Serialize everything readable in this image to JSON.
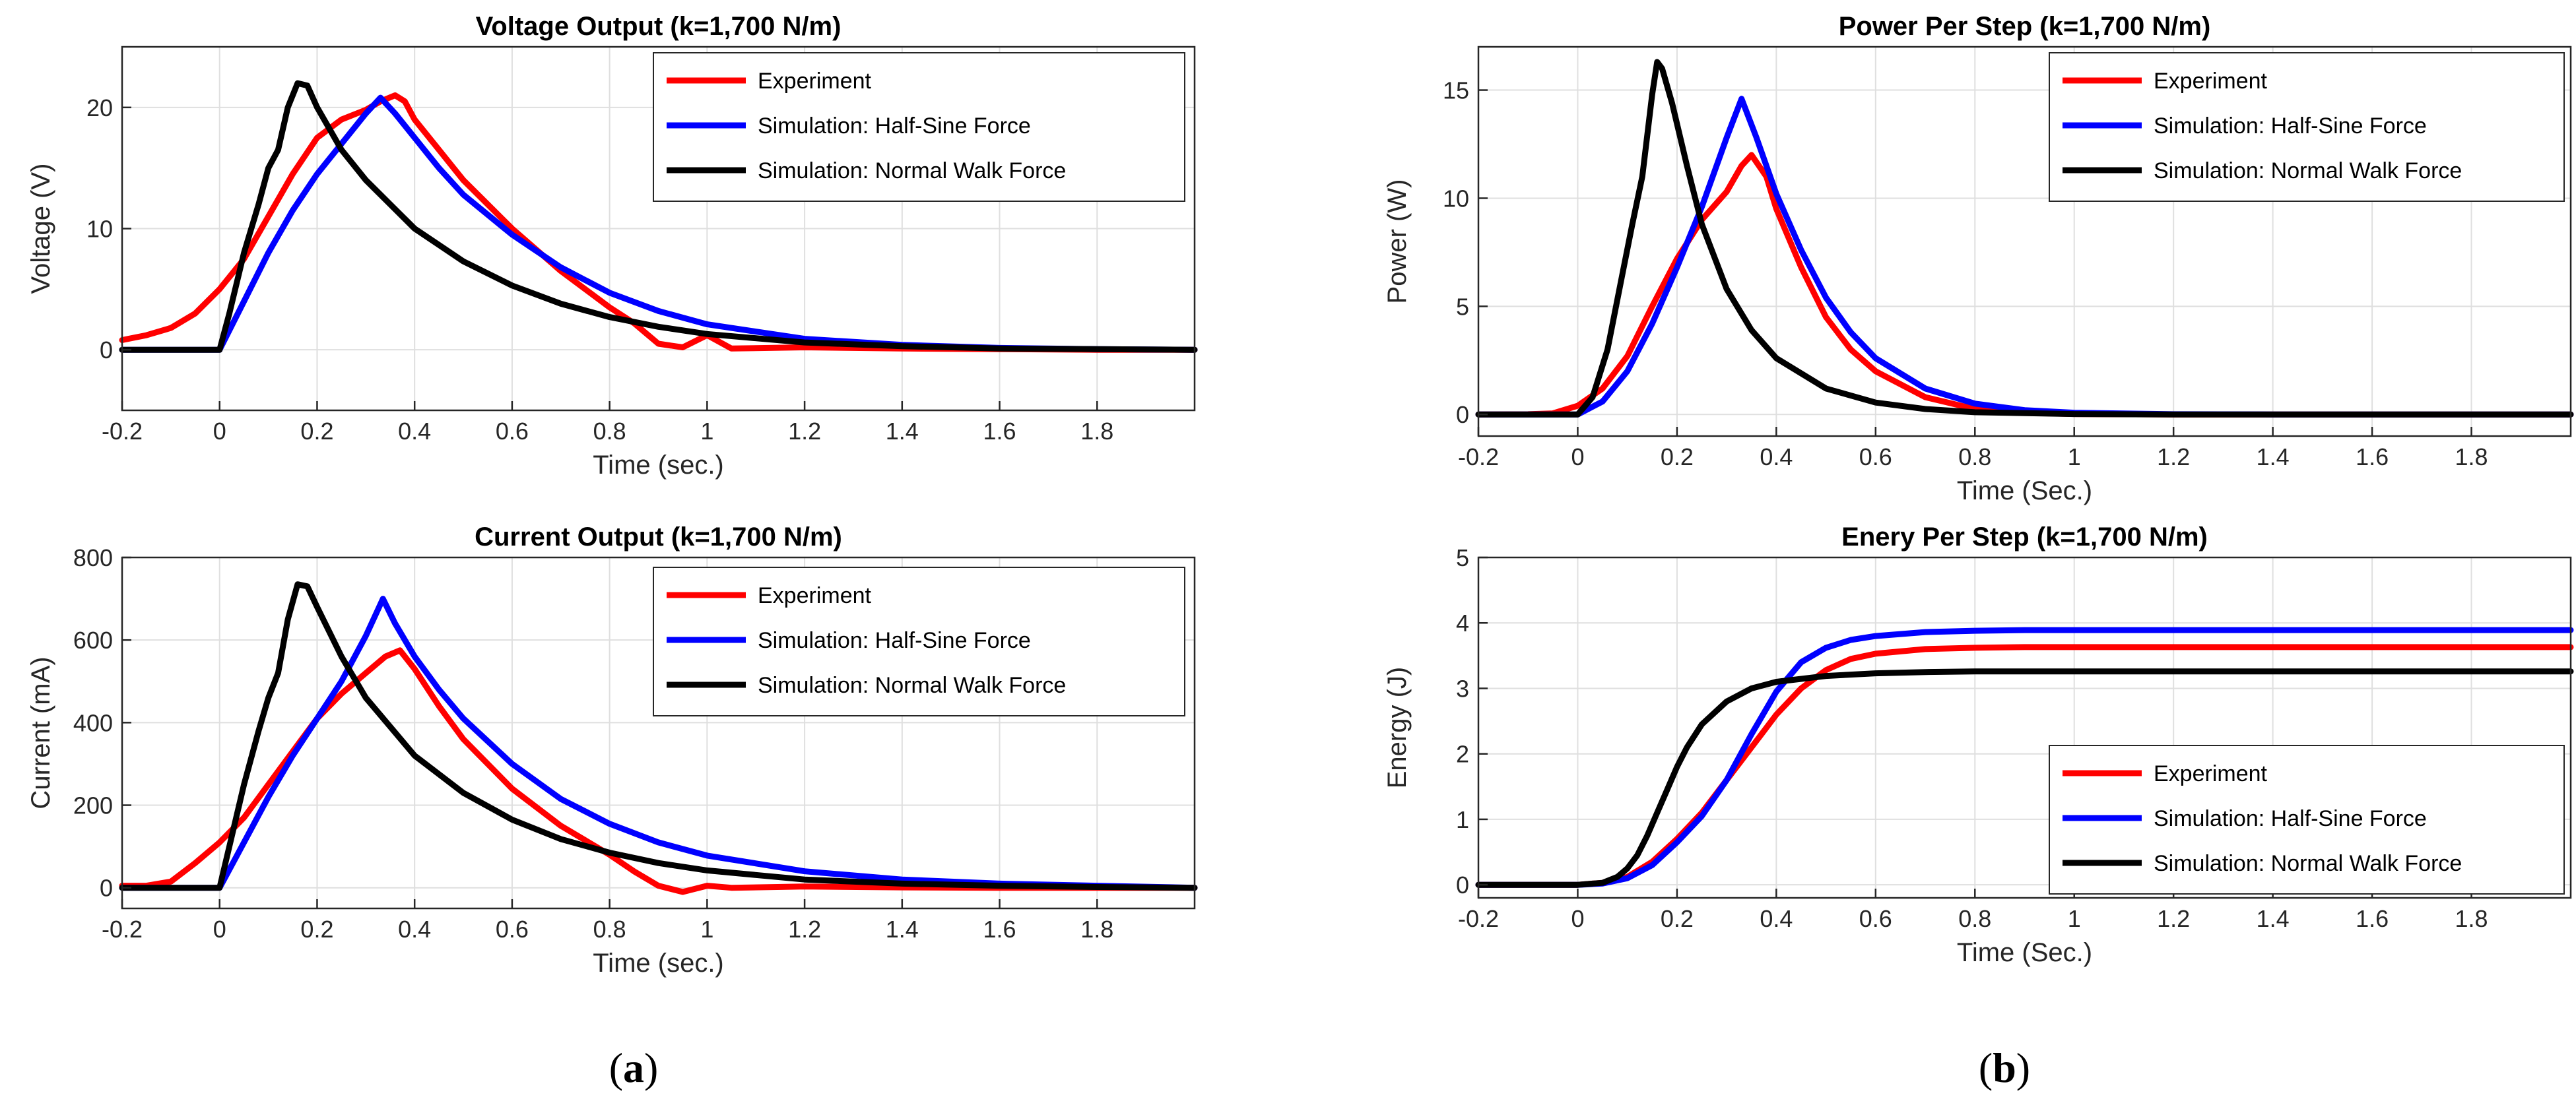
{
  "figure": {
    "caption_a_open": "(",
    "caption_a_letter": "a",
    "caption_a_close": ")",
    "caption_b_open": "(",
    "caption_b_letter": "b",
    "caption_b_close": ")"
  },
  "colors": {
    "experiment": "#ff0000",
    "half_sine": "#0000ff",
    "normal_walk": "#000000",
    "grid": "#dfdfdf",
    "axes": "#262626"
  },
  "chart_data": [
    {
      "id": "voltage",
      "type": "line",
      "title": "Voltage Output (k=1,700 N/m)",
      "xlabel": "Time (sec.)",
      "ylabel": "Voltage (V)",
      "xlim": [
        -0.2,
        2.0
      ],
      "ylim": [
        -5,
        25
      ],
      "xticks": [
        -0.2,
        0,
        0.2,
        0.4,
        0.6,
        0.8,
        1,
        1.2,
        1.4,
        1.6,
        1.8
      ],
      "xtick_labels": [
        "-0.2",
        "0",
        "0.2",
        "0.4",
        "0.6",
        "0.8",
        "1",
        "1.2",
        "1.4",
        "1.6",
        "1.8"
      ],
      "yticks": [
        0,
        10,
        20
      ],
      "ytick_labels": [
        "0",
        "10",
        "20"
      ],
      "grid": true,
      "legend": "top-right",
      "series": [
        {
          "name": "Experiment",
          "color": "#ff0000",
          "x": [
            -0.2,
            -0.15,
            -0.1,
            -0.05,
            0,
            0.05,
            0.1,
            0.15,
            0.2,
            0.25,
            0.3,
            0.33,
            0.36,
            0.38,
            0.4,
            0.45,
            0.5,
            0.6,
            0.7,
            0.8,
            0.85,
            0.9,
            0.95,
            1.0,
            1.05,
            1.2,
            1.4,
            1.6,
            1.8,
            2.0
          ],
          "y": [
            0.8,
            1.2,
            1.8,
            3,
            5,
            7.5,
            11,
            14.5,
            17.5,
            19,
            19.8,
            20.5,
            21,
            20.5,
            19,
            16.5,
            14,
            10,
            6.5,
            3.5,
            2.2,
            0.5,
            0.2,
            1.2,
            0.1,
            0.2,
            0.1,
            0.05,
            0,
            0
          ]
        },
        {
          "name": "Simulation: Half-Sine Force",
          "color": "#0000ff",
          "x": [
            -0.2,
            0,
            0.05,
            0.1,
            0.15,
            0.2,
            0.25,
            0.3,
            0.33,
            0.36,
            0.4,
            0.45,
            0.5,
            0.6,
            0.7,
            0.8,
            0.9,
            1.0,
            1.2,
            1.4,
            1.6,
            1.8,
            2.0
          ],
          "y": [
            0,
            0,
            4,
            8,
            11.5,
            14.5,
            17,
            19.5,
            20.8,
            19.5,
            17.5,
            15,
            12.8,
            9.5,
            6.8,
            4.7,
            3.2,
            2.1,
            0.9,
            0.4,
            0.15,
            0.05,
            0
          ]
        },
        {
          "name": "Simulation: Normal Walk Force",
          "color": "#000000",
          "x": [
            -0.2,
            0,
            0.02,
            0.05,
            0.08,
            0.1,
            0.12,
            0.14,
            0.16,
            0.18,
            0.2,
            0.25,
            0.3,
            0.35,
            0.4,
            0.5,
            0.6,
            0.7,
            0.8,
            0.9,
            1.0,
            1.2,
            1.4,
            1.6,
            1.8,
            2.0
          ],
          "y": [
            0,
            0,
            3,
            8,
            12,
            15,
            16.5,
            20,
            22,
            21.8,
            20,
            16.5,
            14,
            12,
            10,
            7.3,
            5.3,
            3.8,
            2.7,
            1.9,
            1.3,
            0.6,
            0.3,
            0.1,
            0.05,
            0
          ]
        }
      ]
    },
    {
      "id": "current",
      "type": "line",
      "title": "Current Output (k=1,700 N/m)",
      "xlabel": "Time (sec.)",
      "ylabel": "Current (mA)",
      "xlim": [
        -0.2,
        2.0
      ],
      "ylim": [
        -50,
        800
      ],
      "xticks": [
        -0.2,
        0,
        0.2,
        0.4,
        0.6,
        0.8,
        1,
        1.2,
        1.4,
        1.6,
        1.8
      ],
      "xtick_labels": [
        "-0.2",
        "0",
        "0.2",
        "0.4",
        "0.6",
        "0.8",
        "1",
        "1.2",
        "1.4",
        "1.6",
        "1.8"
      ],
      "yticks": [
        0,
        200,
        400,
        600,
        800
      ],
      "ytick_labels": [
        "0",
        "200",
        "400",
        "600",
        "800"
      ],
      "grid": true,
      "legend": "top-right",
      "series": [
        {
          "name": "Experiment",
          "color": "#ff0000",
          "x": [
            -0.2,
            -0.15,
            -0.1,
            -0.05,
            0,
            0.05,
            0.1,
            0.15,
            0.2,
            0.25,
            0.3,
            0.34,
            0.37,
            0.4,
            0.45,
            0.5,
            0.6,
            0.7,
            0.8,
            0.85,
            0.9,
            0.95,
            1.0,
            1.05,
            1.2,
            1.4,
            1.6,
            1.8,
            2.0
          ],
          "y": [
            5,
            5,
            15,
            60,
            110,
            170,
            250,
            330,
            410,
            470,
            520,
            560,
            575,
            530,
            440,
            360,
            240,
            150,
            80,
            40,
            5,
            -10,
            5,
            0,
            3,
            1,
            0,
            0,
            0
          ]
        },
        {
          "name": "Simulation: Half-Sine Force",
          "color": "#0000ff",
          "x": [
            -0.2,
            0,
            0.05,
            0.1,
            0.15,
            0.2,
            0.25,
            0.3,
            0.335,
            0.36,
            0.4,
            0.45,
            0.5,
            0.6,
            0.7,
            0.8,
            0.9,
            1.0,
            1.2,
            1.4,
            1.6,
            1.8,
            2.0
          ],
          "y": [
            0,
            0,
            110,
            220,
            320,
            410,
            500,
            610,
            700,
            640,
            560,
            480,
            410,
            300,
            215,
            155,
            110,
            78,
            40,
            20,
            10,
            5,
            0
          ]
        },
        {
          "name": "Simulation: Normal Walk Force",
          "color": "#000000",
          "x": [
            -0.2,
            0,
            0.02,
            0.05,
            0.08,
            0.1,
            0.12,
            0.14,
            0.16,
            0.18,
            0.2,
            0.25,
            0.3,
            0.35,
            0.4,
            0.5,
            0.6,
            0.7,
            0.8,
            0.9,
            1.0,
            1.2,
            1.4,
            1.6,
            1.8,
            2.0
          ],
          "y": [
            0,
            0,
            100,
            250,
            380,
            460,
            520,
            650,
            735,
            730,
            680,
            560,
            460,
            390,
            320,
            230,
            165,
            118,
            85,
            60,
            42,
            20,
            10,
            5,
            2,
            0
          ]
        }
      ]
    },
    {
      "id": "power",
      "type": "line",
      "title": "Power Per Step (k=1,700 N/m)",
      "xlabel": "Time (Sec.)",
      "ylabel": "Power (W)",
      "xlim": [
        -0.2,
        2.0
      ],
      "ylim": [
        -1,
        17
      ],
      "xticks": [
        -0.2,
        0,
        0.2,
        0.4,
        0.6,
        0.8,
        1,
        1.2,
        1.4,
        1.6,
        1.8
      ],
      "xtick_labels": [
        "-0.2",
        "0",
        "0.2",
        "0.4",
        "0.6",
        "0.8",
        "1",
        "1.2",
        "1.4",
        "1.6",
        "1.8"
      ],
      "yticks": [
        0,
        5,
        10,
        15
      ],
      "ytick_labels": [
        "0",
        "5",
        "10",
        "15"
      ],
      "grid": true,
      "legend": "top-right",
      "series": [
        {
          "name": "Experiment",
          "color": "#ff0000",
          "x": [
            -0.2,
            -0.1,
            -0.05,
            0,
            0.05,
            0.1,
            0.15,
            0.2,
            0.25,
            0.3,
            0.33,
            0.35,
            0.38,
            0.4,
            0.45,
            0.5,
            0.55,
            0.6,
            0.7,
            0.8,
            0.9,
            1.0,
            1.2,
            1.4,
            1.6,
            1.8,
            2.0
          ],
          "y": [
            0,
            0.01,
            0.05,
            0.4,
            1.2,
            2.7,
            5,
            7.2,
            9,
            10.3,
            11.5,
            12,
            11,
            9.5,
            6.8,
            4.5,
            3,
            2,
            0.8,
            0.25,
            0.08,
            0.02,
            0,
            0,
            0,
            0,
            0
          ]
        },
        {
          "name": "Simulation: Half-Sine Force",
          "color": "#0000ff",
          "x": [
            -0.2,
            0,
            0.05,
            0.1,
            0.15,
            0.2,
            0.25,
            0.3,
            0.33,
            0.36,
            0.4,
            0.45,
            0.5,
            0.55,
            0.6,
            0.7,
            0.8,
            0.9,
            1.0,
            1.2,
            1.4,
            1.6,
            1.8,
            2.0
          ],
          "y": [
            0,
            0,
            0.6,
            2,
            4.2,
            6.8,
            9.6,
            12.8,
            14.6,
            12.8,
            10.2,
            7.6,
            5.4,
            3.8,
            2.6,
            1.2,
            0.5,
            0.2,
            0.08,
            0.01,
            0,
            0,
            0,
            0
          ]
        },
        {
          "name": "Simulation: Normal Walk Force",
          "color": "#000000",
          "x": [
            -0.2,
            0,
            0.03,
            0.06,
            0.09,
            0.11,
            0.13,
            0.15,
            0.16,
            0.17,
            0.19,
            0.22,
            0.25,
            0.3,
            0.35,
            0.4,
            0.5,
            0.6,
            0.7,
            0.8,
            1.0,
            1.2,
            1.4,
            1.6,
            1.8,
            2.0
          ],
          "y": [
            0,
            0,
            0.8,
            3,
            6.5,
            8.8,
            11,
            14.8,
            16.3,
            16,
            14.4,
            11.5,
            8.8,
            5.8,
            3.9,
            2.6,
            1.2,
            0.55,
            0.25,
            0.1,
            0.02,
            0,
            0,
            0,
            0,
            0
          ]
        }
      ]
    },
    {
      "id": "energy",
      "type": "line",
      "title": "Enery Per Step (k=1,700 N/m)",
      "xlabel": "Time (Sec.)",
      "ylabel": "Energy (J)",
      "xlim": [
        -0.2,
        2.0
      ],
      "ylim": [
        -0.2,
        5
      ],
      "xticks": [
        -0.2,
        0,
        0.2,
        0.4,
        0.6,
        0.8,
        1,
        1.2,
        1.4,
        1.6,
        1.8
      ],
      "xtick_labels": [
        "-0.2",
        "0",
        "0.2",
        "0.4",
        "0.6",
        "0.8",
        "1",
        "1.2",
        "1.4",
        "1.6",
        "1.8"
      ],
      "yticks": [
        0,
        1,
        2,
        3,
        4,
        5
      ],
      "ytick_labels": [
        "0",
        "1",
        "2",
        "3",
        "4",
        "5"
      ],
      "grid": true,
      "legend": "bottom-right",
      "series": [
        {
          "name": "Experiment",
          "color": "#ff0000",
          "x": [
            -0.2,
            0,
            0.05,
            0.1,
            0.15,
            0.2,
            0.25,
            0.3,
            0.35,
            0.4,
            0.45,
            0.5,
            0.55,
            0.6,
            0.7,
            0.8,
            0.9,
            1.0,
            1.2,
            1.4,
            1.6,
            1.8,
            2.0
          ],
          "y": [
            0,
            0,
            0.03,
            0.12,
            0.35,
            0.7,
            1.1,
            1.6,
            2.1,
            2.6,
            3.0,
            3.28,
            3.45,
            3.53,
            3.6,
            3.62,
            3.63,
            3.63,
            3.63,
            3.63,
            3.63,
            3.63,
            3.63
          ]
        },
        {
          "name": "Simulation: Half-Sine Force",
          "color": "#0000ff",
          "x": [
            -0.2,
            0,
            0.05,
            0.1,
            0.15,
            0.2,
            0.25,
            0.3,
            0.35,
            0.4,
            0.45,
            0.5,
            0.55,
            0.6,
            0.7,
            0.8,
            0.9,
            1.0,
            1.2,
            1.4,
            1.6,
            1.8,
            2.0
          ],
          "y": [
            0,
            0,
            0.02,
            0.1,
            0.3,
            0.65,
            1.05,
            1.6,
            2.3,
            2.95,
            3.4,
            3.62,
            3.74,
            3.8,
            3.86,
            3.88,
            3.89,
            3.89,
            3.89,
            3.89,
            3.89,
            3.89,
            3.89
          ]
        },
        {
          "name": "Simulation: Normal Walk Force",
          "color": "#000000",
          "x": [
            -0.2,
            0,
            0.05,
            0.08,
            0.1,
            0.12,
            0.14,
            0.16,
            0.18,
            0.2,
            0.22,
            0.25,
            0.3,
            0.35,
            0.4,
            0.5,
            0.6,
            0.7,
            0.8,
            1.0,
            1.2,
            1.4,
            1.6,
            1.8,
            2.0
          ],
          "y": [
            0,
            0,
            0.03,
            0.12,
            0.25,
            0.45,
            0.75,
            1.1,
            1.45,
            1.8,
            2.1,
            2.45,
            2.8,
            3.0,
            3.1,
            3.19,
            3.23,
            3.25,
            3.26,
            3.26,
            3.26,
            3.26,
            3.26,
            3.26,
            3.26
          ]
        }
      ]
    }
  ]
}
